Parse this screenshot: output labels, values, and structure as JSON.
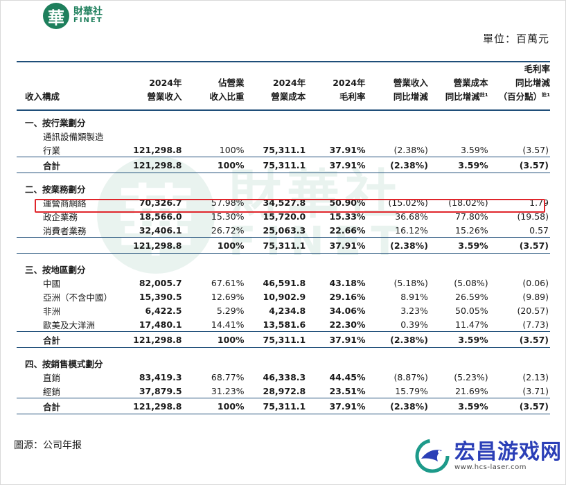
{
  "header": {
    "logo_glyph": "華",
    "logo_cn": "財華社",
    "logo_en": "FINET",
    "unit": "單位：百萬元"
  },
  "columns": [
    {
      "l1": "",
      "l2": "",
      "l3": "收入構成"
    },
    {
      "l1": "",
      "l2": "2024年",
      "l3": "營業收入"
    },
    {
      "l1": "",
      "l2": "佔營業",
      "l3": "收入比重"
    },
    {
      "l1": "",
      "l2": "2024年",
      "l3": "營業成本"
    },
    {
      "l1": "",
      "l2": "2024年",
      "l3": "毛利率"
    },
    {
      "l1": "",
      "l2": "營業收入",
      "l3": "同比增減"
    },
    {
      "l1": "",
      "l2": "營業成本",
      "l3": "同比增減",
      "note": "註1"
    },
    {
      "l1": "毛利率",
      "l2": "同比增減",
      "l3": "（百分點）",
      "note": "註1"
    }
  ],
  "sections": [
    {
      "title": "一、按行業劃分",
      "items": [
        {
          "name": "通訊設備類製造",
          "name2": "行業",
          "vals": [
            "121,298.8",
            "100%",
            "75,311.1",
            "37.91%",
            "(2.38%)",
            "3.59%",
            "(3.57)"
          ]
        }
      ],
      "total": {
        "name": "合計",
        "vals": [
          "121,298.8",
          "100%",
          "75,311.1",
          "37.91%",
          "(2.38%)",
          "3.59%",
          "(3.57)"
        ]
      }
    },
    {
      "title": "二、按業務劃分",
      "items": [
        {
          "name": "運營商網絡",
          "vals": [
            "70,326.7",
            "57.98%",
            "34,527.8",
            "50.90%",
            "(15.02%)",
            "(18.02%)",
            "1.79"
          ]
        },
        {
          "name": "政企業務",
          "vals": [
            "18,566.0",
            "15.30%",
            "15,720.0",
            "15.33%",
            "36.68%",
            "77.80%",
            "(19.58)"
          ]
        },
        {
          "name": "消費者業務",
          "vals": [
            "32,406.1",
            "26.72%",
            "25,063.3",
            "22.66%",
            "16.12%",
            "15.26%",
            "0.57"
          ]
        }
      ],
      "total": {
        "name": "",
        "vals": [
          "121,298.8",
          "100%",
          "75,311.1",
          "37.91%",
          "(2.38%)",
          "3.59%",
          "(3.57)"
        ]
      }
    },
    {
      "title": "三、按地區劃分",
      "items": [
        {
          "name": "中國",
          "vals": [
            "82,005.7",
            "67.61%",
            "46,591.8",
            "43.18%",
            "(5.18%)",
            "(5.08%)",
            "(0.06)"
          ]
        },
        {
          "name": "亞洲（不含中國）",
          "vals": [
            "15,390.5",
            "12.69%",
            "10,902.9",
            "29.16%",
            "8.91%",
            "26.59%",
            "(9.89)"
          ]
        },
        {
          "name": "非洲",
          "vals": [
            "6,422.5",
            "5.29%",
            "4,234.8",
            "34.06%",
            "3.23%",
            "50.05%",
            "(20.57)"
          ]
        },
        {
          "name": "歐美及大洋洲",
          "vals": [
            "17,480.1",
            "14.41%",
            "13,581.6",
            "22.30%",
            "0.39%",
            "11.47%",
            "(7.73)"
          ]
        }
      ],
      "total": {
        "name": "合計",
        "vals": [
          "121,298.8",
          "100%",
          "75,311.1",
          "37.91%",
          "(2.38%)",
          "3.59%",
          "(3.57)"
        ]
      }
    },
    {
      "title": "四、按銷售模式劃分",
      "items": [
        {
          "name": "直銷",
          "vals": [
            "83,419.3",
            "68.77%",
            "46,338.3",
            "44.45%",
            "(8.87%)",
            "(5.23%)",
            "(2.13)"
          ]
        },
        {
          "name": "經銷",
          "vals": [
            "37,879.5",
            "31.23%",
            "28,972.8",
            "23.51%",
            "15.79%",
            "21.69%",
            "(3.71)"
          ]
        }
      ],
      "total": {
        "name": "合計",
        "vals": [
          "121,298.8",
          "100%",
          "75,311.1",
          "37.91%",
          "(2.38%)",
          "3.59%",
          "(3.57)"
        ]
      }
    }
  ],
  "watermark": {
    "cn": "財華社",
    "en": "FINET"
  },
  "footer": {
    "source": "圖源：公司年报",
    "site_name": "宏昌游戏网",
    "site_url": "www.hcs-laser.com"
  },
  "colors": {
    "brand": "#1e7f5c",
    "rule": "#1f4e79",
    "highlight": "#e0252b",
    "site": "#2b3fb7"
  }
}
